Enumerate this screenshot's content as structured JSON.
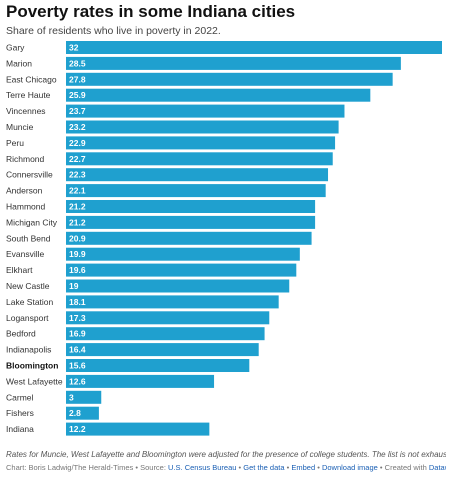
{
  "title": "Poverty rates in some Indiana cities",
  "subtitle": "Share of residents who live in poverty in 2022.",
  "colors": {
    "bar": "#1fa0cf",
    "text": "#333333",
    "link": "#1a5fb4"
  },
  "chart_data": {
    "type": "bar",
    "orientation": "horizontal",
    "categories": [
      "Gary",
      "Marion",
      "East Chicago",
      "Terre Haute",
      "Vincennes",
      "Muncie",
      "Peru",
      "Richmond",
      "Connersville",
      "Anderson",
      "Hammond",
      "Michigan City",
      "South Bend",
      "Evansville",
      "Elkhart",
      "New Castle",
      "Lake Station",
      "Logansport",
      "Bedford",
      "Indianapolis",
      "Bloomington",
      "West Lafayette",
      "Carmel",
      "Fishers",
      "Indiana"
    ],
    "values": [
      32,
      28.5,
      27.8,
      25.9,
      23.7,
      23.2,
      22.9,
      22.7,
      22.3,
      22.1,
      21.2,
      21.2,
      20.9,
      19.9,
      19.6,
      19,
      18.1,
      17.3,
      16.9,
      16.4,
      15.6,
      12.6,
      3,
      2.8,
      12.2
    ],
    "value_labels": [
      "32",
      "28.5",
      "27.8",
      "25.9",
      "23.7",
      "23.2",
      "22.9",
      "22.7",
      "22.3",
      "22.1",
      "21.2",
      "21.2",
      "20.9",
      "19.9",
      "19.6",
      "19",
      "18.1",
      "17.3",
      "16.9",
      "16.4",
      "15.6",
      "12.6",
      "3",
      "2.8",
      "12.2"
    ],
    "highlight": "Bloomington",
    "xlim": [
      0,
      32
    ],
    "grid": false,
    "legend": "none"
  },
  "note": "Rates for Muncie, West Lafayette and Bloomington were adjusted for the presence of college students. The list is not exhaustiv",
  "footer": {
    "credit": "Chart: Boris Ladwig/The Herald-Times",
    "source_label": "Source:",
    "source_link": "U.S. Census Bureau",
    "get_data": "Get the data",
    "embed": "Embed",
    "download": "Download image",
    "created_label": "Created with",
    "created_link": "Datawrapp",
    "sep": "•"
  }
}
